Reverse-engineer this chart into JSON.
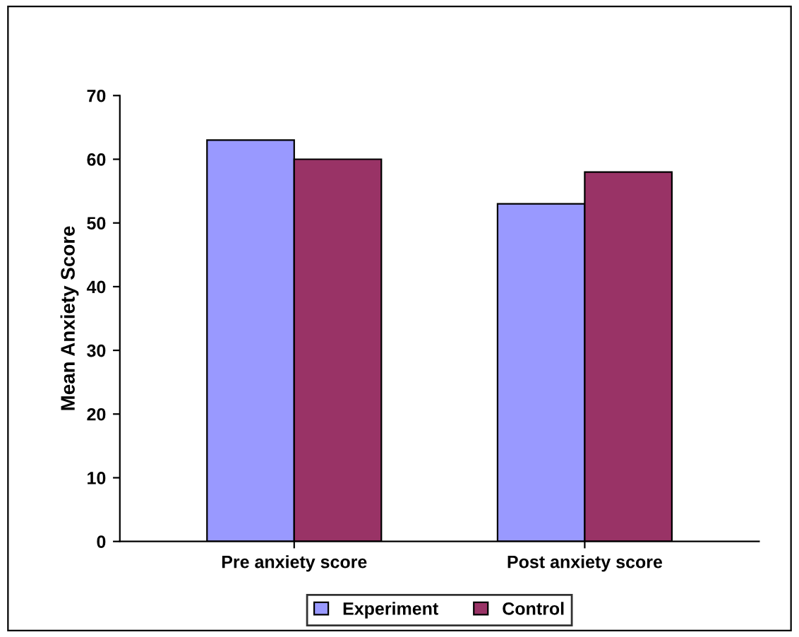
{
  "chart_data": {
    "type": "bar",
    "ylabel": "Mean Anxiety Score",
    "categories": [
      "Pre anxiety score",
      "Post anxiety score"
    ],
    "series": [
      {
        "name": "Experiment",
        "color": "#9999ff",
        "values": [
          63,
          53
        ]
      },
      {
        "name": "Control",
        "color": "#993366",
        "values": [
          60,
          58
        ]
      }
    ],
    "ylim": [
      0,
      70
    ],
    "yticks": [
      0,
      10,
      20,
      30,
      40,
      50,
      60,
      70
    ],
    "grid": false,
    "legend": "bottom"
  }
}
